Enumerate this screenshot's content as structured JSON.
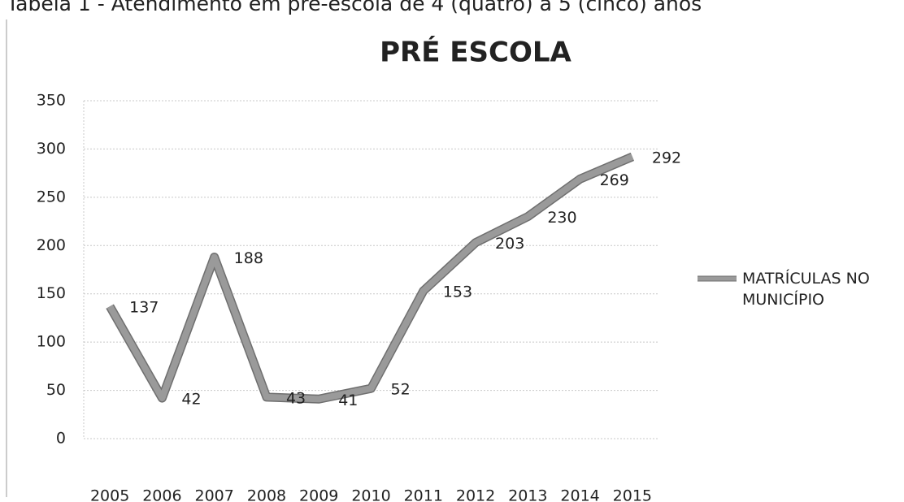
{
  "caption": "Tabela 1 - Atendimento em pré-escola de 4 (quatro) a 5 (cinco) anos",
  "chart_data": {
    "type": "line",
    "title": "PRÉ ESCOLA",
    "categories": [
      "2005",
      "2006",
      "2007",
      "2008",
      "2009",
      "2010",
      "2011",
      "2012",
      "2013",
      "2014",
      "2015"
    ],
    "series": [
      {
        "name": "MATRÍCULAS NO MUNICÍPIO",
        "color": "#9a9a9a",
        "values": [
          137,
          42,
          188,
          43,
          41,
          52,
          153,
          203,
          230,
          269,
          292
        ]
      }
    ],
    "ylim": [
      0,
      350
    ],
    "yticks": [
      0,
      50,
      100,
      150,
      200,
      250,
      300,
      350
    ],
    "grid": true,
    "legend": "right"
  }
}
